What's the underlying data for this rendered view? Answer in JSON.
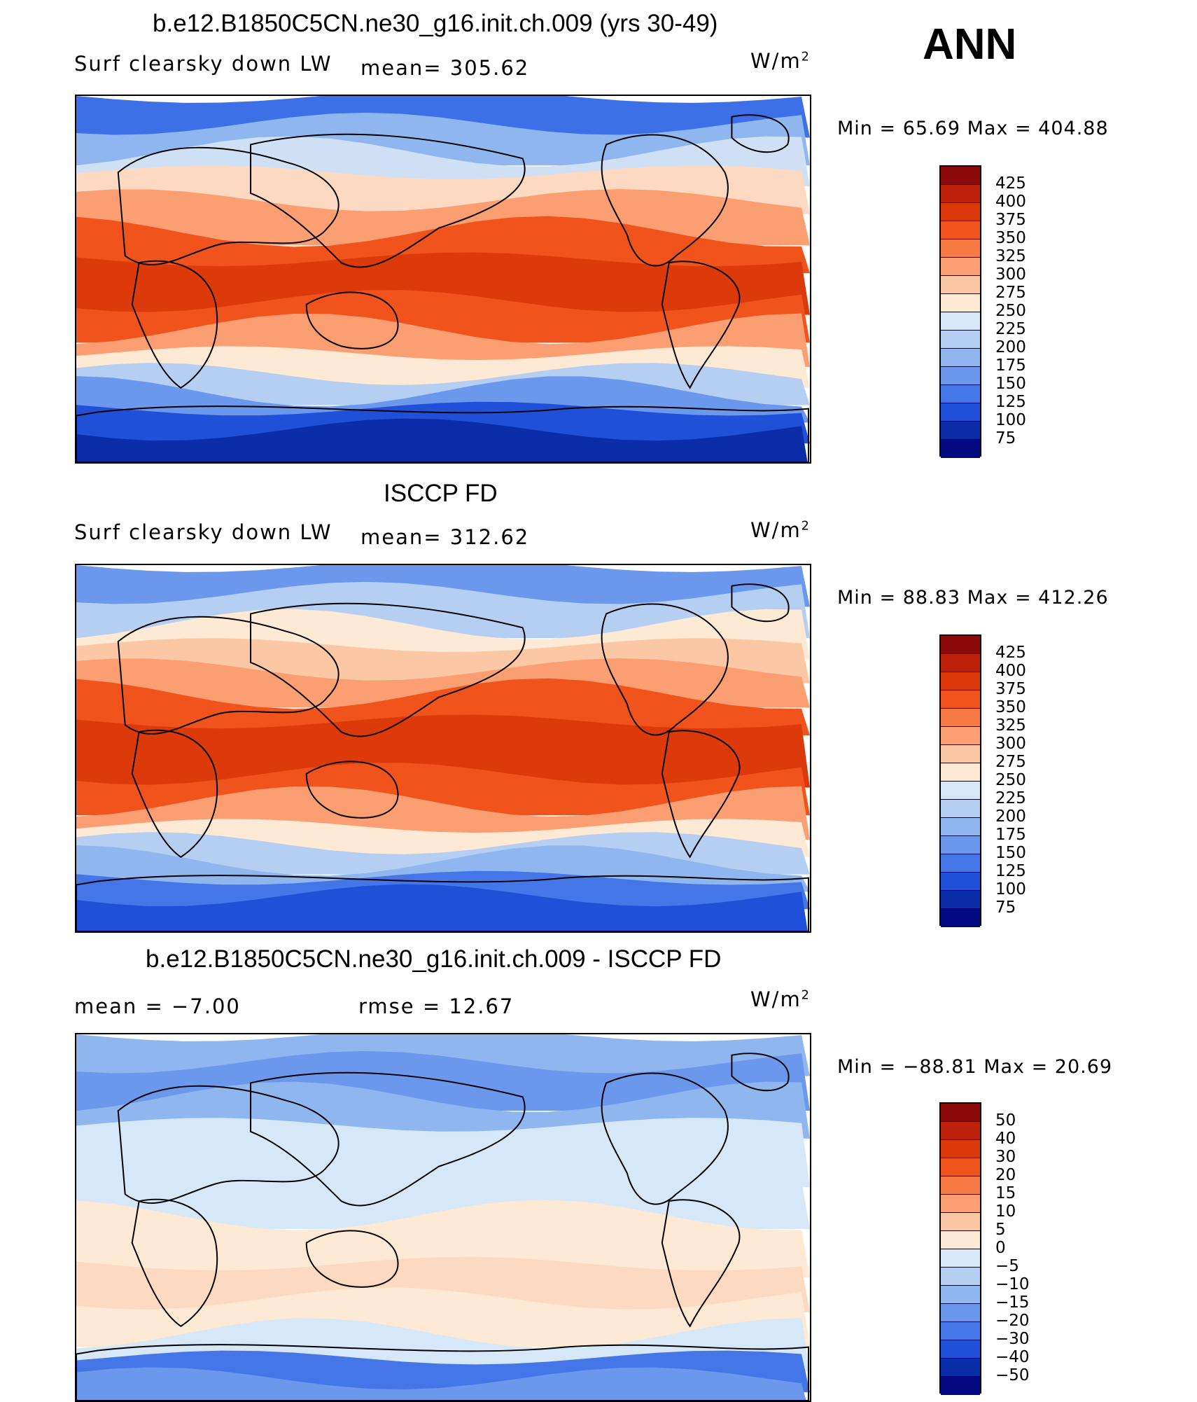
{
  "season": "ANN",
  "panels": [
    {
      "id": "model",
      "title": "b.e12.B1850C5CN.ne30_g16.init.ch.009 (yrs 30-49)",
      "left_label": "Surf clearsky down LW",
      "center_label": "mean= 305.62",
      "units_base": "W/m",
      "units_exp": "2",
      "minmax": "Min =   65.69  Max  =  404.88",
      "colorbar": {
        "levels": [
          "425",
          "400",
          "375",
          "350",
          "325",
          "300",
          "275",
          "250",
          "225",
          "200",
          "175",
          "150",
          "125",
          "100",
          "75"
        ],
        "colors": [
          "#8b0a0a",
          "#bd200b",
          "#dd3a0c",
          "#f0541c",
          "#f77a45",
          "#fb9e72",
          "#fcc7a4",
          "#fde9d4",
          "#d6e7f7",
          "#b4cff2",
          "#8fb6ef",
          "#6b97ec",
          "#4476e8",
          "#2050d8",
          "#0c2da8",
          "#020a82"
        ]
      }
    },
    {
      "id": "obs",
      "title": "ISCCP FD",
      "left_label": "Surf clearsky down LW",
      "center_label": "mean= 312.62",
      "units_base": "W/m",
      "units_exp": "2",
      "minmax": "Min =   88.83  Max  =  412.26",
      "colorbar": {
        "levels": [
          "425",
          "400",
          "375",
          "350",
          "325",
          "300",
          "275",
          "250",
          "225",
          "200",
          "175",
          "150",
          "125",
          "100",
          "75"
        ],
        "colors": [
          "#8b0a0a",
          "#bd200b",
          "#dd3a0c",
          "#f0541c",
          "#f77a45",
          "#fb9e72",
          "#fcc7a4",
          "#fde9d4",
          "#d6e7f7",
          "#b4cff2",
          "#8fb6ef",
          "#6b97ec",
          "#4476e8",
          "#2050d8",
          "#0c2da8",
          "#020a82"
        ]
      }
    },
    {
      "id": "diff",
      "title": "b.e12.B1850C5CN.ne30_g16.init.ch.009 - ISCCP FD",
      "left_label": "mean =    −7.00",
      "center_label": "rmse =    12.67",
      "units_base": "W/m",
      "units_exp": "2",
      "minmax": "Min = −88.81  Max =    20.69",
      "colorbar": {
        "levels": [
          "50",
          "40",
          "30",
          "20",
          "15",
          "10",
          "5",
          "0",
          "−5",
          "−10",
          "−15",
          "−20",
          "−30",
          "−40",
          "−50"
        ],
        "colors": [
          "#8b0a0a",
          "#bd200b",
          "#dd3a0c",
          "#f0541c",
          "#f77a45",
          "#fb9e72",
          "#fcc7a4",
          "#fde9d4",
          "#d6e7f7",
          "#b4cff2",
          "#8fb6ef",
          "#6b97ec",
          "#4476e8",
          "#2050d8",
          "#0c2da8",
          "#020a82"
        ]
      }
    }
  ]
}
